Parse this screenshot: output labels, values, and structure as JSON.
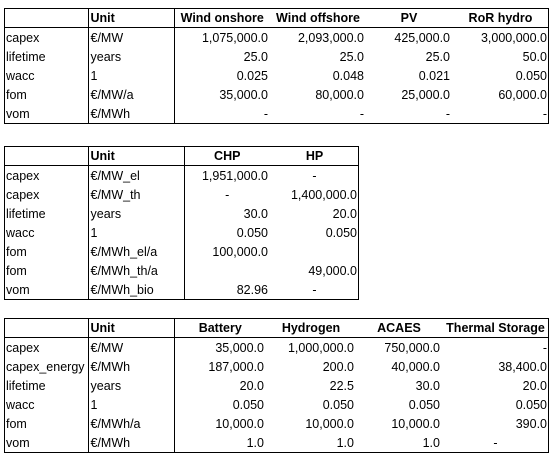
{
  "table1": {
    "headers": [
      "",
      "Unit",
      "Wind onshore",
      "Wind offshore",
      "PV",
      "RoR hydro"
    ],
    "rows": [
      [
        "capex",
        "€/MW",
        "1,075,000.0",
        "2,093,000.0",
        "425,000.0",
        "3,000,000.0"
      ],
      [
        "lifetime",
        "years",
        "25.0",
        "25.0",
        "25.0",
        "50.0"
      ],
      [
        "wacc",
        "1",
        "0.025",
        "0.048",
        "0.021",
        "0.050"
      ],
      [
        "fom",
        "€/MW/a",
        "35,000.0",
        "80,000.0",
        "25,000.0",
        "60,000.0"
      ],
      [
        "vom",
        "€/MWh",
        "-",
        "-",
        "-",
        "-"
      ]
    ]
  },
  "table2": {
    "headers": [
      "",
      "Unit",
      "CHP",
      "HP"
    ],
    "rows": [
      [
        "capex",
        "€/MW_el",
        "1,951,000.0",
        "-"
      ],
      [
        "capex",
        "€/MW_th",
        "-",
        "1,400,000.0"
      ],
      [
        "lifetime",
        "years",
        "30.0",
        "20.0"
      ],
      [
        "wacc",
        "1",
        "0.050",
        "0.050"
      ],
      [
        "fom",
        "€/MWh_el/a",
        "100,000.0",
        ""
      ],
      [
        "fom",
        "€/MWh_th/a",
        "",
        "49,000.0"
      ],
      [
        "vom",
        "€/MWh_bio",
        "82.96",
        "-"
      ]
    ]
  },
  "table3": {
    "headers": [
      "",
      "Unit",
      "Battery",
      "Hydrogen",
      "ACAES",
      "Thermal Storage"
    ],
    "rows": [
      [
        "capex",
        "€/MW",
        "35,000.0",
        "1,000,000.0",
        "750,000.0",
        "-"
      ],
      [
        "capex_energy",
        "€/MWh",
        "187,000.0",
        "200.0",
        "40,000.0",
        "38,400.0"
      ],
      [
        "lifetime",
        "years",
        "20.0",
        "22.5",
        "30.0",
        "20.0"
      ],
      [
        "wacc",
        "1",
        "0.050",
        "0.050",
        "0.050",
        "0.050"
      ],
      [
        "fom",
        "€/MWh/a",
        "10,000.0",
        "10,000.0",
        "10,000.0",
        "390.0"
      ],
      [
        "vom",
        "€/MWh",
        "1.0",
        "1.0",
        "1.0",
        "-"
      ]
    ]
  }
}
